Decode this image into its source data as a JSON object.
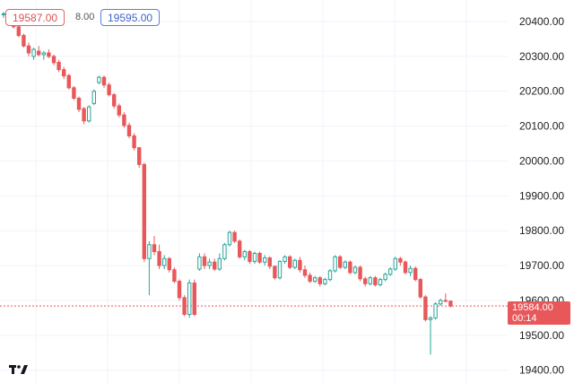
{
  "quote_bar": {
    "sell_price": "19587.00",
    "spread": "8.00",
    "buy_price": "19595.00"
  },
  "current_price": {
    "price": "19584.00",
    "countdown": "00:14",
    "color": "#e8585a"
  },
  "colors": {
    "up": "#26a69a",
    "down": "#e8585a",
    "grid": "#f0f3fa"
  },
  "chart_data": {
    "type": "candlestick",
    "y_ticks": [
      "20400.00",
      "20300.00",
      "20200.00",
      "20100.00",
      "20000.00",
      "19900.00",
      "19800.00",
      "19700.00",
      "19600.00",
      "19500.00",
      "19400.00"
    ],
    "ylim": [
      19380,
      20440
    ],
    "grid": true,
    "candles": [
      [
        20420,
        20428,
        20410,
        20422
      ],
      [
        20425,
        20428,
        20400,
        20405
      ],
      [
        20405,
        20410,
        20380,
        20385
      ],
      [
        20385,
        20390,
        20355,
        20360
      ],
      [
        20360,
        20365,
        20325,
        20330
      ],
      [
        20330,
        20340,
        20300,
        20310
      ],
      [
        20300,
        20325,
        20290,
        20320
      ],
      [
        20315,
        20330,
        20300,
        20305
      ],
      [
        20305,
        20315,
        20290,
        20310
      ],
      [
        20310,
        20320,
        20295,
        20300
      ],
      [
        20300,
        20305,
        20275,
        20282
      ],
      [
        20283,
        20290,
        20255,
        20262
      ],
      [
        20262,
        20270,
        20235,
        20244
      ],
      [
        20245,
        20250,
        20205,
        20210
      ],
      [
        20210,
        20215,
        20175,
        20180
      ],
      [
        20180,
        20185,
        20140,
        20148
      ],
      [
        20150,
        20155,
        20105,
        20115
      ],
      [
        20115,
        20160,
        20110,
        20155
      ],
      [
        20165,
        20205,
        20160,
        20200
      ],
      [
        20225,
        20245,
        20220,
        20240
      ],
      [
        20240,
        20245,
        20210,
        20218
      ],
      [
        20218,
        20225,
        20185,
        20190
      ],
      [
        20190,
        20195,
        20150,
        20158
      ],
      [
        20158,
        20165,
        20125,
        20132
      ],
      [
        20132,
        20140,
        20095,
        20102
      ],
      [
        20102,
        20110,
        20065,
        20072
      ],
      [
        20072,
        20080,
        20030,
        20038
      ],
      [
        20038,
        20040,
        19980,
        19990
      ],
      [
        19990,
        19995,
        19710,
        19720
      ],
      [
        19720,
        19770,
        19615,
        19760
      ],
      [
        19760,
        19785,
        19730,
        19740
      ],
      [
        19740,
        19760,
        19690,
        19700
      ],
      [
        19700,
        19730,
        19690,
        19720
      ],
      [
        19720,
        19725,
        19680,
        19688
      ],
      [
        19688,
        19695,
        19650,
        19655
      ],
      [
        19655,
        19660,
        19600,
        19608
      ],
      [
        19608,
        19615,
        19555,
        19560
      ],
      [
        19560,
        19660,
        19550,
        19650
      ],
      [
        19650,
        19660,
        19555,
        19560
      ],
      [
        19690,
        19735,
        19685,
        19725
      ],
      [
        19725,
        19735,
        19690,
        19700
      ],
      [
        19700,
        19720,
        19690,
        19710
      ],
      [
        19710,
        19720,
        19685,
        19690
      ],
      [
        19690,
        19735,
        19685,
        19720
      ],
      [
        19720,
        19765,
        19715,
        19760
      ],
      [
        19760,
        19800,
        19755,
        19795
      ],
      [
        19795,
        19800,
        19765,
        19770
      ],
      [
        19770,
        19775,
        19720,
        19725
      ],
      [
        19725,
        19745,
        19715,
        19740
      ],
      [
        19740,
        19745,
        19705,
        19712
      ],
      [
        19712,
        19740,
        19705,
        19735
      ],
      [
        19735,
        19740,
        19705,
        19710
      ],
      [
        19710,
        19730,
        19700,
        19722
      ],
      [
        19722,
        19727,
        19690,
        19698
      ],
      [
        19698,
        19700,
        19660,
        19665
      ],
      [
        19665,
        19715,
        19660,
        19712
      ],
      [
        19712,
        19730,
        19705,
        19725
      ],
      [
        19725,
        19730,
        19690,
        19695
      ],
      [
        19695,
        19720,
        19690,
        19715
      ],
      [
        19715,
        19725,
        19680,
        19688
      ],
      [
        19688,
        19700,
        19665,
        19672
      ],
      [
        19672,
        19680,
        19650,
        19655
      ],
      [
        19655,
        19670,
        19650,
        19665
      ],
      [
        19665,
        19670,
        19640,
        19648
      ],
      [
        19648,
        19665,
        19643,
        19660
      ],
      [
        19660,
        19690,
        19655,
        19685
      ],
      [
        19685,
        19730,
        19680,
        19725
      ],
      [
        19725,
        19730,
        19690,
        19695
      ],
      [
        19695,
        19715,
        19690,
        19710
      ],
      [
        19710,
        19715,
        19675,
        19680
      ],
      [
        19680,
        19700,
        19675,
        19695
      ],
      [
        19695,
        19700,
        19655,
        19662
      ],
      [
        19662,
        19668,
        19640,
        19648
      ],
      [
        19648,
        19670,
        19643,
        19665
      ],
      [
        19665,
        19670,
        19640,
        19645
      ],
      [
        19645,
        19665,
        19640,
        19660
      ],
      [
        19660,
        19680,
        19655,
        19675
      ],
      [
        19675,
        19695,
        19670,
        19690
      ],
      [
        19690,
        19725,
        19685,
        19720
      ],
      [
        19720,
        19725,
        19700,
        19710
      ],
      [
        19710,
        19715,
        19675,
        19680
      ],
      [
        19680,
        19700,
        19670,
        19692
      ],
      [
        19692,
        19697,
        19655,
        19660
      ],
      [
        19660,
        19665,
        19605,
        19610
      ],
      [
        19610,
        19615,
        19540,
        19545
      ],
      [
        19545,
        19555,
        19445,
        19550
      ],
      [
        19550,
        19595,
        19545,
        19590
      ],
      [
        19590,
        19605,
        19585,
        19600
      ],
      [
        19600,
        19620,
        19595,
        19598
      ],
      [
        19598,
        19600,
        19580,
        19584
      ]
    ]
  }
}
